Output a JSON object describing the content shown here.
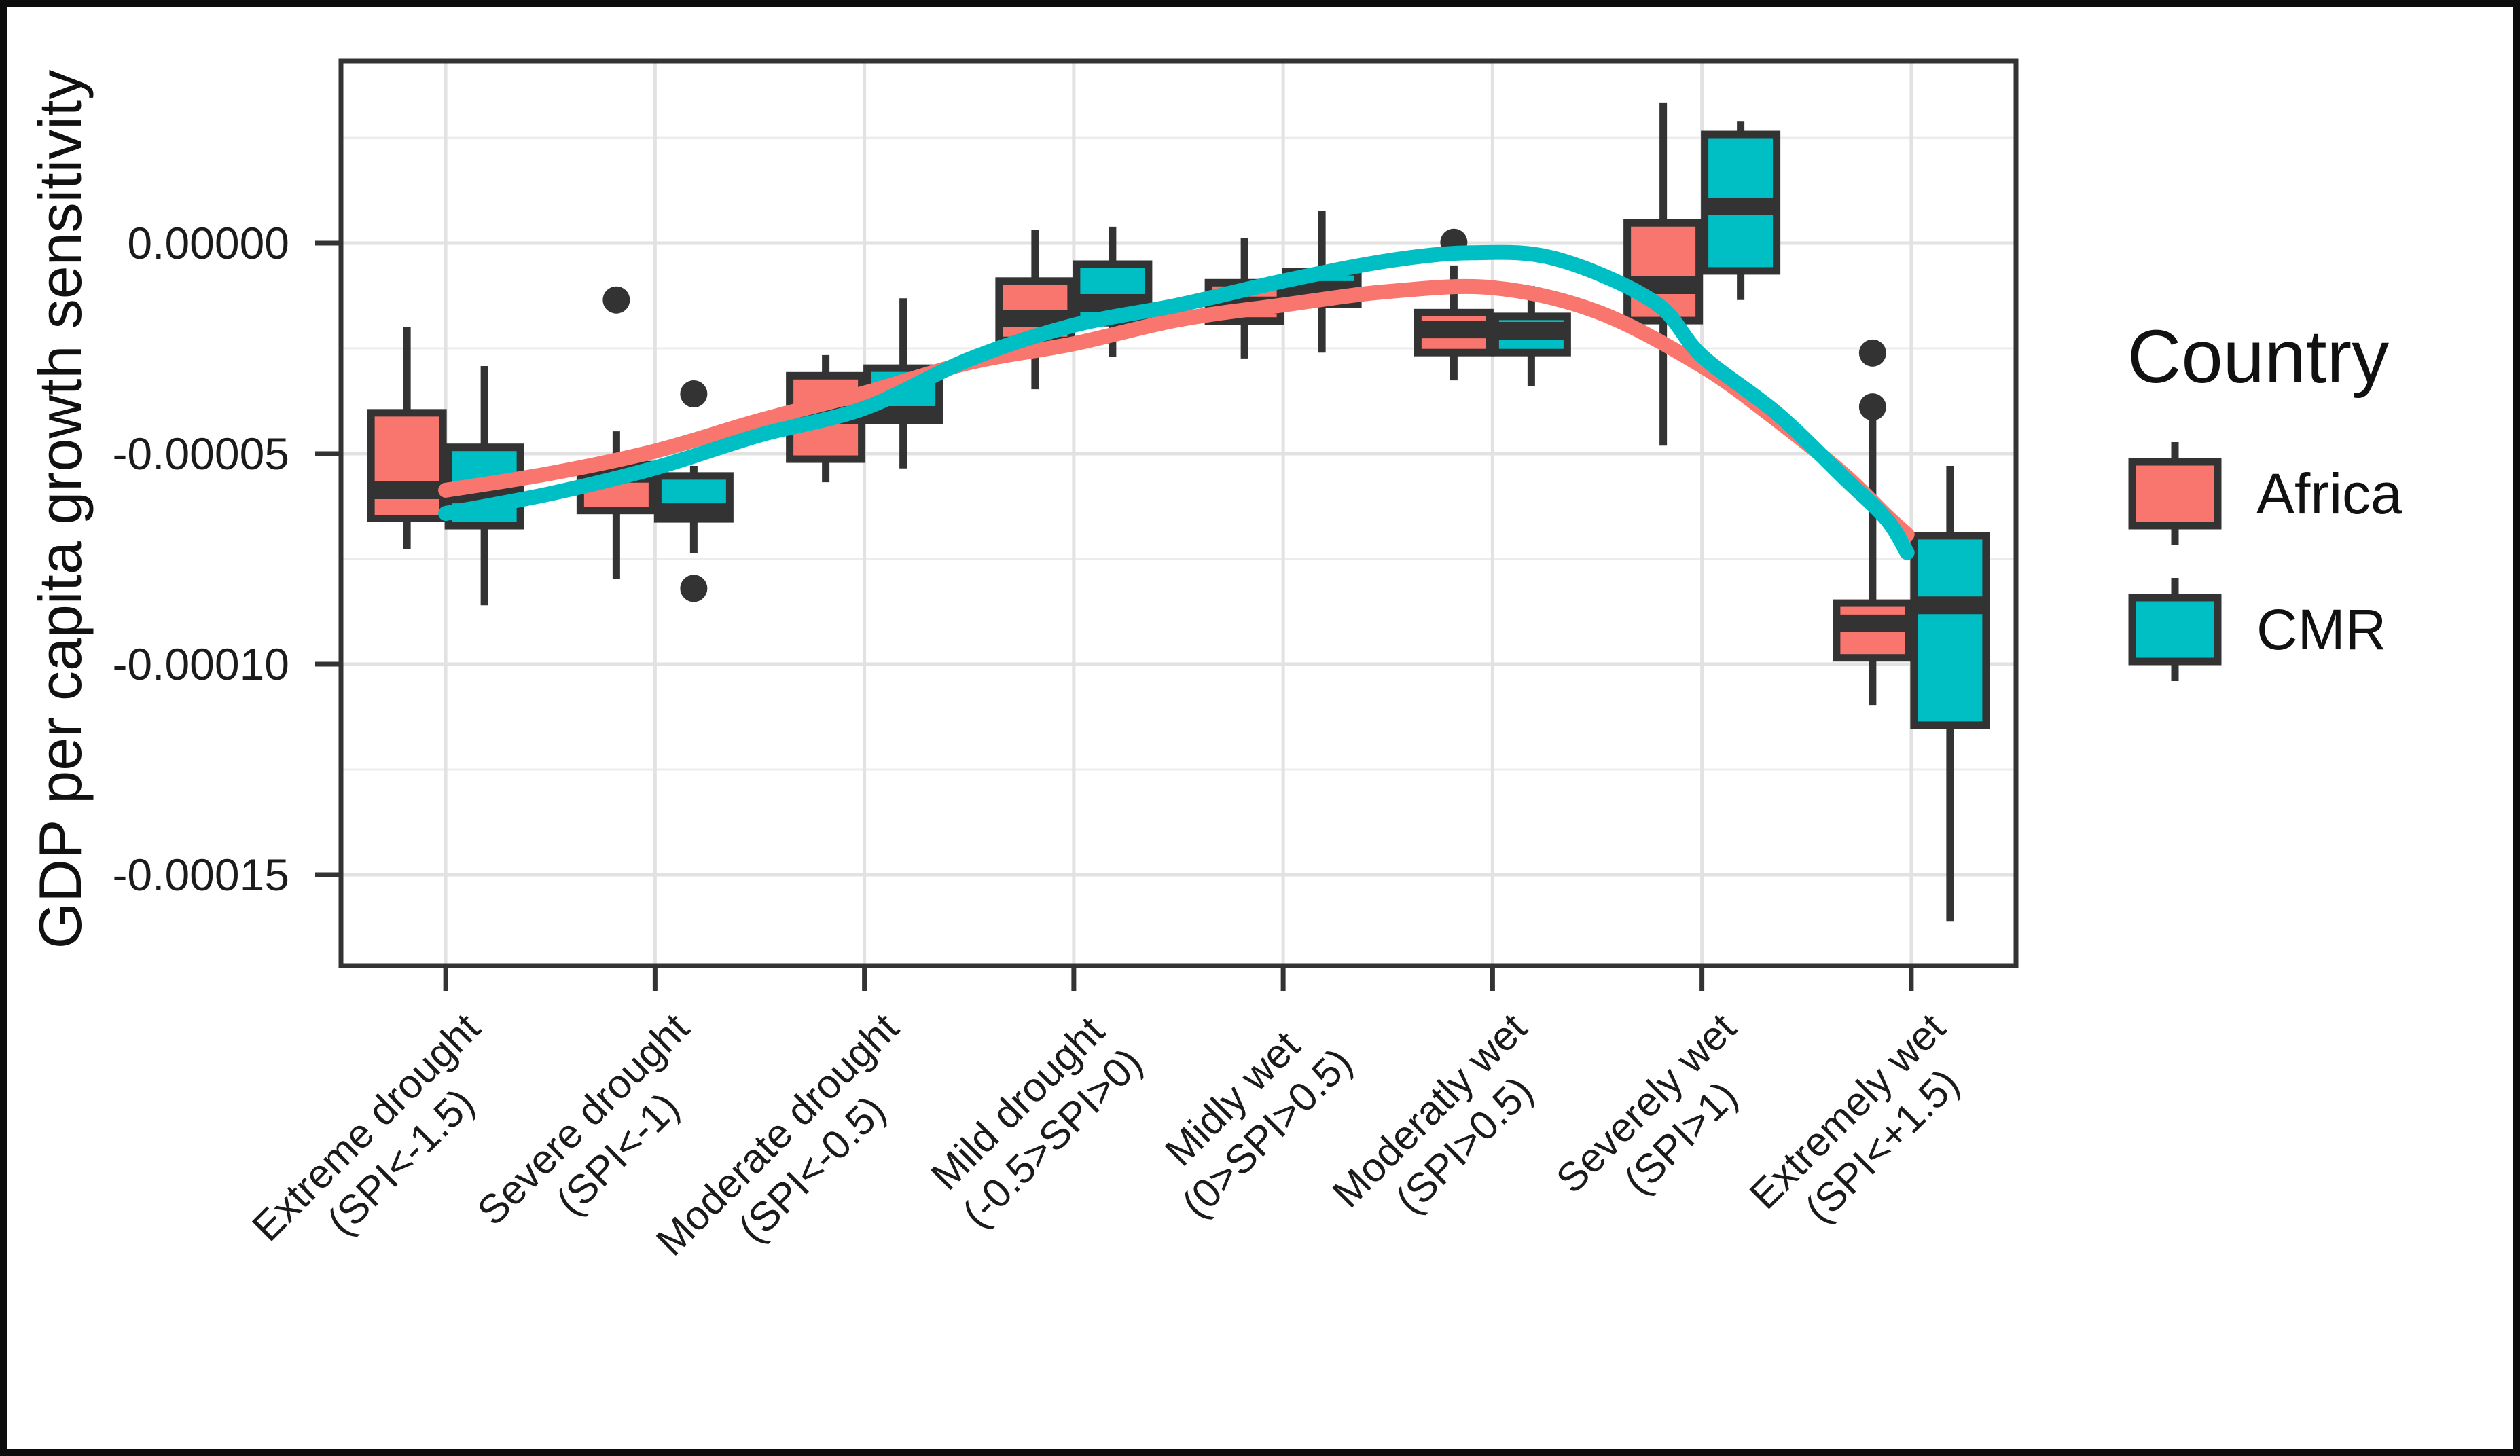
{
  "y_axis": {
    "title": "GDP per capita growth sensitivity",
    "tick_labels": [
      "0.00000",
      "-0.00005",
      "-0.00010",
      "-0.00015"
    ],
    "tick_values": [
      0,
      -5e-05,
      -0.0001,
      -0.00015
    ],
    "minor_values": [
      2.5e-05,
      -2.5e-05,
      -7.5e-05,
      -0.000125
    ]
  },
  "x_axis": {
    "categories": [
      {
        "line1": "Extreme drought",
        "line2": "(SPI<-1.5)"
      },
      {
        "line1": "Severe drought",
        "line2": "(SPI<-1)"
      },
      {
        "line1": "Moderate drought",
        "line2": "(SPI<-0.5)"
      },
      {
        "line1": "Mild drought",
        "line2": "(-0.5>SPI>0)"
      },
      {
        "line1": "Midly wet",
        "line2": "(0>SPI>0.5)"
      },
      {
        "line1": "Moderatly wet",
        "line2": "(SPI>0.5)"
      },
      {
        "line1": "Severely wet",
        "line2": "(SPI>1)"
      },
      {
        "line1": "Extremely wet",
        "line2": "(SPI<+1.5)"
      }
    ]
  },
  "legend": {
    "title": "Country",
    "items": [
      {
        "label": "Africa",
        "color": "#F8766D"
      },
      {
        "label": "CMR",
        "color": "#00BFC4"
      }
    ]
  },
  "chart_data": {
    "type": "boxplot",
    "subtype": "grouped boxplot with loess smooth curves",
    "title": "",
    "xlabel": "",
    "ylabel": "GDP per capita growth sensitivity",
    "ylim": [
      -0.000172,
      4.3e-05
    ],
    "grid": true,
    "legend_position": "right",
    "group_by": "Country",
    "categories": [
      "Extreme drought (SPI<-1.5)",
      "Severe drought (SPI<-1)",
      "Moderate drought (SPI<-0.5)",
      "Mild drought (-0.5>SPI>0)",
      "Midly wet (0>SPI>0.5)",
      "Moderatly wet (SPI>0.5)",
      "Severely wet (SPI>1)",
      "Extremely wet (SPI<+1.5)"
    ],
    "series": [
      {
        "name": "Africa",
        "color": "#F8766D",
        "boxes": [
          {
            "whisker_low": -7.26e-05,
            "q1": -6.54e-05,
            "median": -5.87e-05,
            "q3": -4.03e-05,
            "whisker_high": -2e-05,
            "outliers": []
          },
          {
            "whisker_low": -7.97e-05,
            "q1": -6.35e-05,
            "median": -5.48e-05,
            "q3": -5.26e-05,
            "whisker_high": -4.47e-05,
            "outliers": [
              -1.35e-05
            ]
          },
          {
            "whisker_low": -5.68e-05,
            "q1": -5.13e-05,
            "median": -4.08e-05,
            "q3": -3.15e-05,
            "whisker_high": -2.66e-05,
            "outliers": []
          },
          {
            "whisker_low": -3.47e-05,
            "q1": -2.31e-05,
            "median": -1.79e-05,
            "q3": -9e-06,
            "whisker_high": 3.1e-06,
            "outliers": []
          },
          {
            "whisker_low": -2.74e-05,
            "q1": -1.85e-05,
            "median": -1.48e-05,
            "q3": -9.4e-06,
            "whisker_high": 1.3e-06,
            "outliers": []
          },
          {
            "whisker_low": -3.26e-05,
            "q1": -2.6e-05,
            "median": -2.05e-05,
            "q3": -1.65e-05,
            "whisker_high": -5.3e-06,
            "outliers": [
              2e-07
            ]
          },
          {
            "whisker_low": -4.81e-05,
            "q1": -1.84e-05,
            "median": -1e-05,
            "q3": 4.8e-06,
            "whisker_high": 3.34e-05,
            "outliers": []
          },
          {
            "whisker_low": -0.0001097,
            "q1": -9.85e-05,
            "median": -9.03e-05,
            "q3": -8.55e-05,
            "whisker_high": -4.05e-05,
            "outliers": [
              -2.61e-05,
              -3.89e-05
            ]
          }
        ]
      },
      {
        "name": "CMR",
        "color": "#00BFC4",
        "boxes": [
          {
            "whisker_low": -8.6e-05,
            "q1": -6.71e-05,
            "median": -5.97e-05,
            "q3": -4.85e-05,
            "whisker_high": -2.92e-05,
            "outliers": []
          },
          {
            "whisker_low": -7.37e-05,
            "q1": -6.55e-05,
            "median": -6.39e-05,
            "q3": -5.53e-05,
            "whisker_high": -5.29e-05,
            "outliers": [
              -3.58e-05,
              -8.2e-05
            ]
          },
          {
            "whisker_low": -5.35e-05,
            "q1": -4.21e-05,
            "median": -4.08e-05,
            "q3": -2.97e-05,
            "whisker_high": -1.31e-05,
            "outliers": []
          },
          {
            "whisker_low": -2.71e-05,
            "q1": -1.89e-05,
            "median": -1.42e-05,
            "q3": -5e-06,
            "whisker_high": 3.9e-06,
            "outliers": []
          },
          {
            "whisker_low": -2.6e-05,
            "q1": -1.45e-05,
            "median": -1.11e-05,
            "q3": -6.8e-06,
            "whisker_high": 7.6e-06,
            "outliers": []
          },
          {
            "whisker_low": -3.4e-05,
            "q1": -2.6e-05,
            "median": -2.08e-05,
            "q3": -1.74e-05,
            "whisker_high": -1.02e-05,
            "outliers": []
          },
          {
            "whisker_low": -1.35e-05,
            "q1": -6.6e-06,
            "median": 8.7e-06,
            "q3": 2.58e-05,
            "whisker_high": 2.9e-05,
            "outliers": []
          },
          {
            "whisker_low": -0.000161,
            "q1": -0.0001145,
            "median": -8.6e-05,
            "q3": -6.95e-05,
            "whisker_high": -5.29e-05,
            "outliers": []
          }
        ]
      }
    ],
    "smooth_lines": [
      {
        "name": "Africa",
        "color": "#F8766D",
        "points": [
          [
            1.0,
            -5.87e-05
          ],
          [
            1.5,
            -5.47e-05
          ],
          [
            2.0,
            -4.94e-05
          ],
          [
            2.5,
            -4.21e-05
          ],
          [
            3.0,
            -3.56e-05
          ],
          [
            3.5,
            -2.84e-05
          ],
          [
            4.0,
            -2.39e-05
          ],
          [
            4.5,
            -1.82e-05
          ],
          [
            5.0,
            -1.47e-05
          ],
          [
            5.5,
            -1.15e-05
          ],
          [
            6.0,
            -1.06e-05
          ],
          [
            6.5,
            -1.63e-05
          ],
          [
            7.0,
            -2.92e-05
          ],
          [
            7.36,
            -4.21e-05
          ],
          [
            7.68,
            -5.5e-05
          ],
          [
            7.88,
            -6.47e-05
          ],
          [
            7.98,
            -6.92e-05
          ]
        ]
      },
      {
        "name": "CMR",
        "color": "#00BFC4",
        "points": [
          [
            1.0,
            -6.42e-05
          ],
          [
            1.5,
            -5.95e-05
          ],
          [
            2.0,
            -5.34e-05
          ],
          [
            2.5,
            -4.56e-05
          ],
          [
            3.0,
            -3.92e-05
          ],
          [
            3.5,
            -2.76e-05
          ],
          [
            4.0,
            -1.95e-05
          ],
          [
            4.5,
            -1.47e-05
          ],
          [
            5.0,
            -9e-06
          ],
          [
            5.5,
            -4.2e-06
          ],
          [
            5.9,
            -2.3e-06
          ],
          [
            6.3,
            -3.7e-06
          ],
          [
            6.77,
            -1.39e-05
          ],
          [
            7.0,
            -2.68e-05
          ],
          [
            7.36,
            -4.05e-05
          ],
          [
            7.68,
            -5.58e-05
          ],
          [
            7.88,
            -6.55e-05
          ],
          [
            7.98,
            -7.35e-05
          ]
        ]
      }
    ],
    "style": {
      "box_stroke": "#333333",
      "outlier_color": "#333333",
      "grid_major_color": "#e2e2e2",
      "grid_minor_color": "#ececec",
      "panel_border_color": "#333333"
    }
  }
}
